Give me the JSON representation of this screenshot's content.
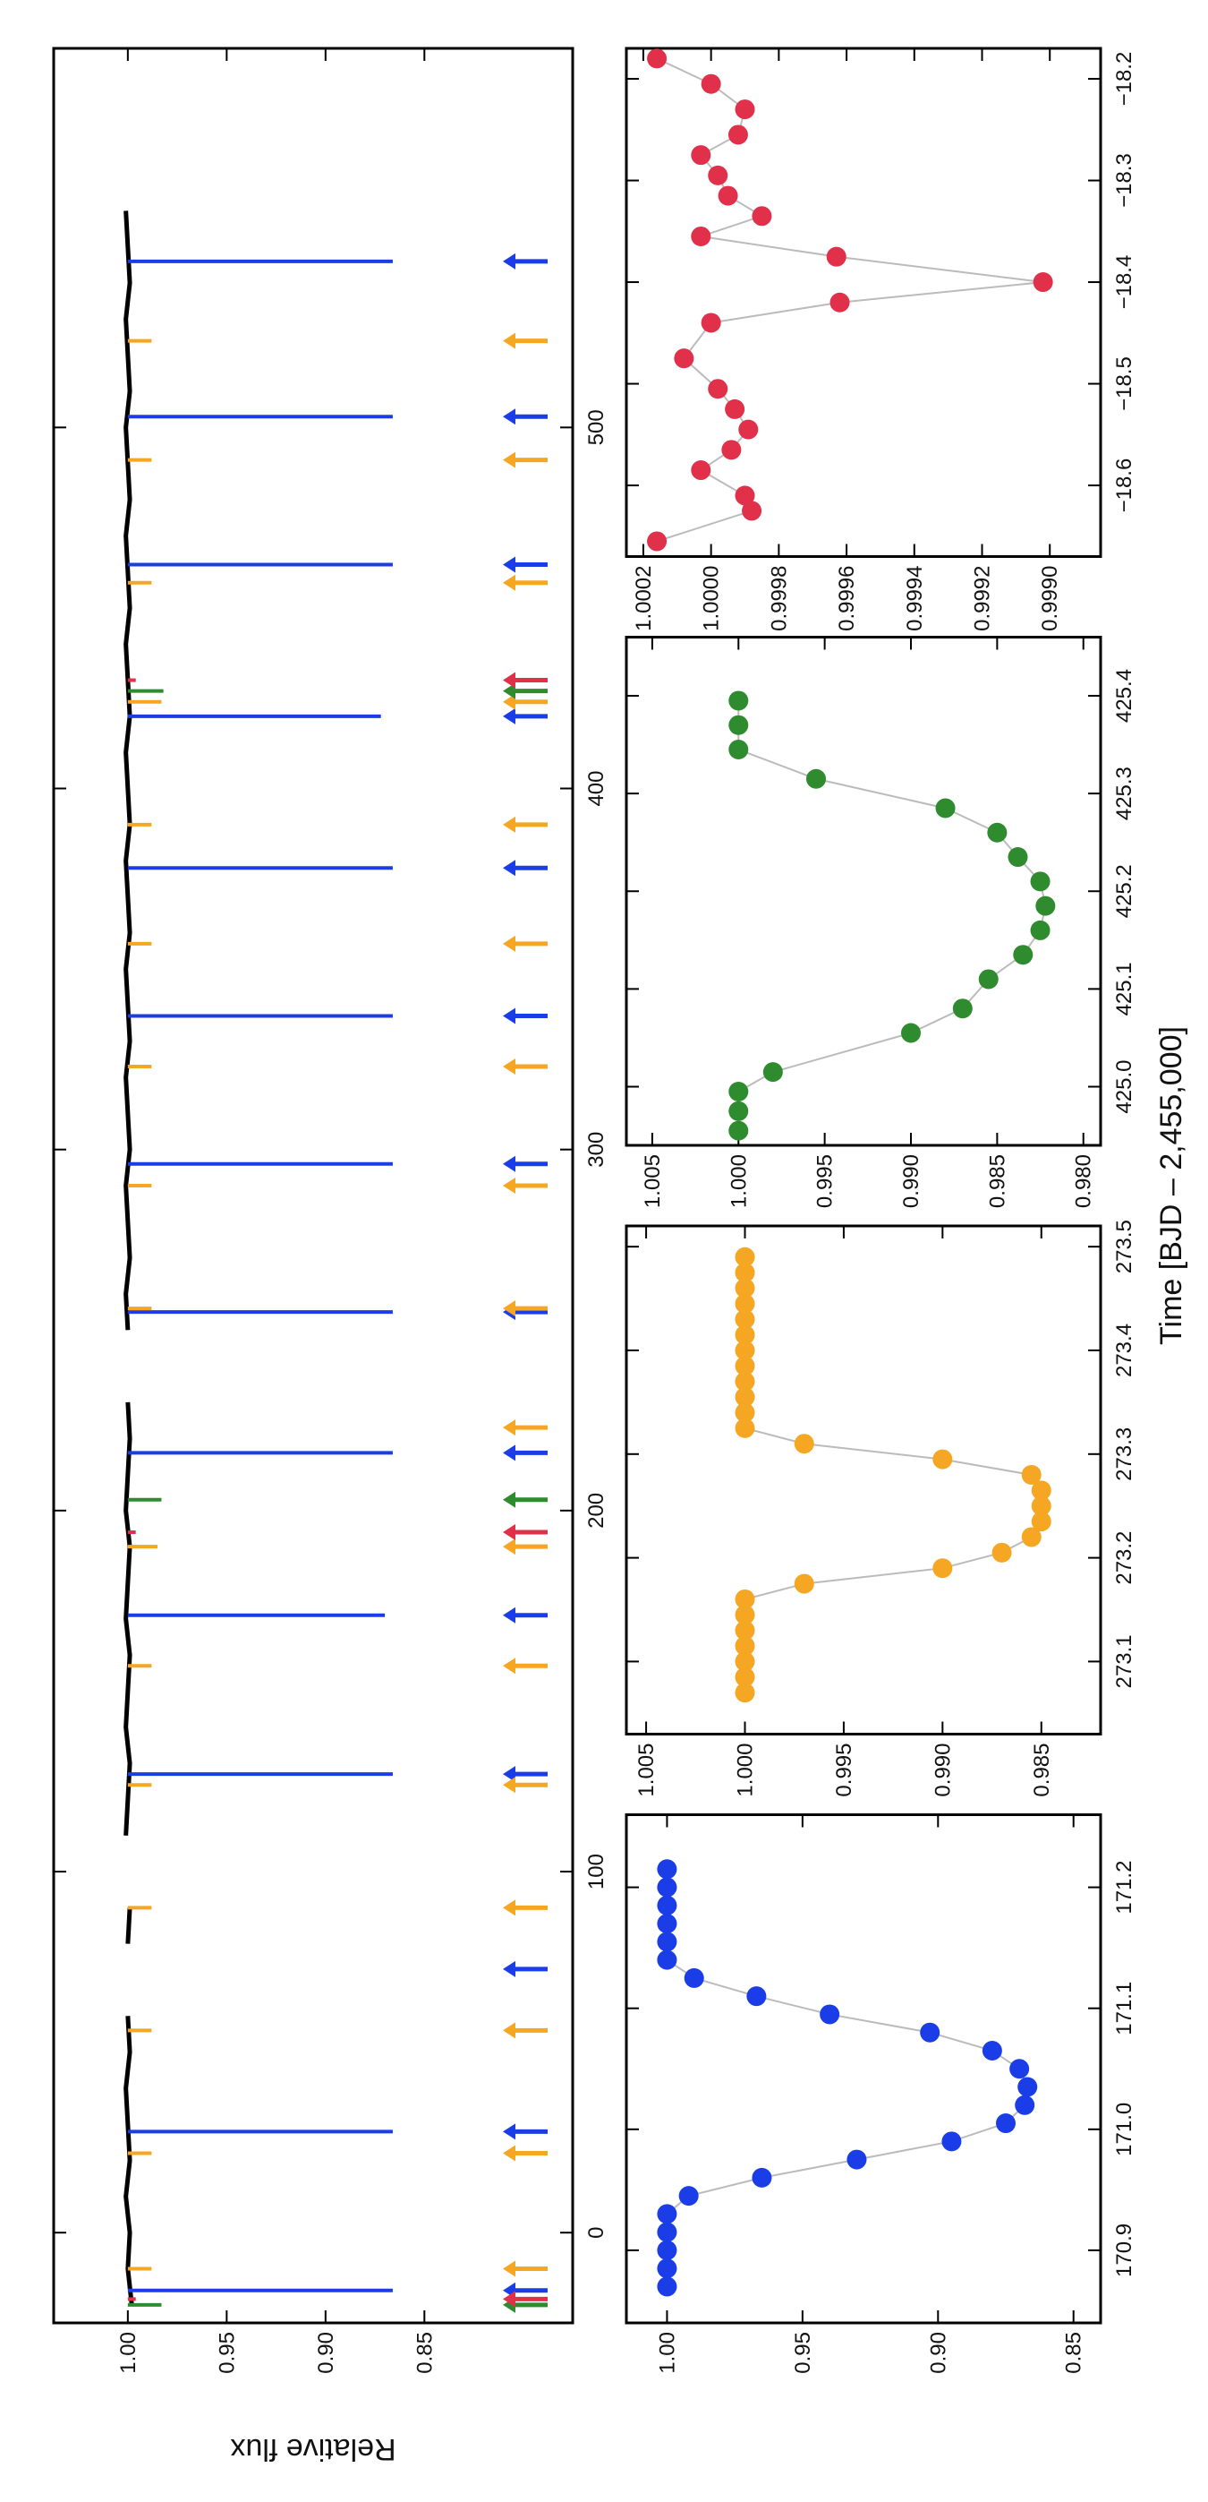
{
  "xlabel": "Time [BJD – 2,455,000]",
  "chart_data": [
    {
      "type": "line",
      "ylabel": "Relative flux",
      "xlim": [
        -25,
        605
      ],
      "xticks": [
        0,
        100,
        200,
        300,
        400,
        500
      ],
      "ylim": [
        0.775,
        1.0375
      ],
      "yticks": [
        {
          "value": 1,
          "label": "1.00"
        },
        0.95,
        {
          "value": 0.9,
          "label": "0.90"
        },
        0.85
      ],
      "x": [
        -20,
        -10,
        0,
        10,
        20,
        30,
        40,
        50,
        60,
        70,
        80,
        90,
        100,
        110,
        120,
        130,
        140,
        150,
        160,
        170,
        180,
        190,
        200,
        210,
        220,
        230,
        240,
        250,
        260,
        270,
        280,
        290,
        300,
        310,
        320,
        330,
        340,
        350,
        360,
        370,
        380,
        390,
        400,
        410,
        420,
        430,
        440,
        450,
        460,
        470,
        480,
        490,
        500,
        510,
        520,
        530,
        540,
        550,
        560
      ],
      "series": [
        {
          "color": "#000000",
          "values": [
            0.998,
            1.0,
            0.999,
            1.001,
            0.999,
            1.0,
            1.001,
            0.999,
            1.0,
            null,
            1.0,
            0.999,
            null,
            1.001,
            1.0,
            0.999,
            1.001,
            1.0,
            0.999,
            1.001,
            1.0,
            0.999,
            1.001,
            1.0,
            0.999,
            1.0,
            null,
            1.0,
            1.001,
            0.999,
            1.0,
            1.001,
            0.999,
            1.0,
            1.001,
            0.999,
            1.0,
            1.001,
            0.999,
            1.0,
            1.001,
            0.999,
            1.0,
            1.001,
            0.999,
            1.0,
            1.001,
            0.999,
            1.0,
            1.001,
            0.999,
            1.0,
            1.001,
            0.999,
            1.0,
            1.001,
            0.999,
            1.0,
            1.001
          ]
        }
      ],
      "transits": [
        {
          "color": "#1a3de8",
          "times": [
            -16,
            28,
            73,
            127,
            171,
            216,
            255,
            296,
            337,
            378,
            420,
            462,
            503,
            546
          ],
          "depths": [
            0.866,
            0.866,
            null,
            0.866,
            0.87,
            0.866,
            0.866,
            0.866,
            0.866,
            0.866,
            0.872,
            0.866,
            0.866,
            0.866
          ]
        },
        {
          "color": "#f5a623",
          "times": [
            -10,
            22,
            56,
            90,
            124,
            157,
            190,
            223,
            256,
            290,
            323,
            357,
            390,
            424,
            457,
            491,
            524
          ],
          "depths": [
            0.988,
            0.988,
            0.988,
            0.988,
            0.988,
            0.988,
            0.985,
            null,
            0.988,
            0.988,
            0.988,
            0.988,
            0.988,
            0.983,
            0.988,
            0.988,
            0.988
          ]
        },
        {
          "color": "#2e8b2e",
          "times": [
            -20,
            203,
            427
          ],
          "depths": [
            0.983,
            0.983,
            0.982
          ]
        },
        {
          "color": "#e0304a",
          "times": [
            -18.4,
            194,
            430
          ],
          "depths": [
            0.996,
            0.996,
            0.996
          ]
        }
      ]
    },
    {
      "type": "scatter",
      "color": "#1a3de8",
      "xlim": [
        170.84,
        171.26
      ],
      "xticks": [
        170.9,
        {
          "value": 171,
          "label": "171.0"
        },
        171.1,
        171.2
      ],
      "ylim": [
        0.84,
        1.015
      ],
      "yticks": [
        {
          "value": 1,
          "label": "1.00"
        },
        0.95,
        {
          "value": 0.9,
          "label": "0.90"
        },
        0.85
      ],
      "x": [
        170.87,
        170.885,
        170.9,
        170.915,
        170.93,
        170.945,
        170.96,
        170.975,
        170.99,
        171.005,
        171.02,
        171.035,
        171.05,
        171.065,
        171.08,
        171.095,
        171.11,
        171.125,
        171.14,
        171.155,
        171.17,
        171.185,
        171.2,
        171.215
      ],
      "values": [
        1.0,
        1.0,
        1.0,
        1.0,
        1.0,
        0.992,
        0.965,
        0.93,
        0.895,
        0.875,
        0.868,
        0.867,
        0.87,
        0.88,
        0.903,
        0.94,
        0.967,
        0.99,
        1.0,
        1.0,
        1.0,
        1.0,
        1.0,
        1.0
      ]
    },
    {
      "type": "scatter",
      "color": "#f5a623",
      "xlim": [
        273.03,
        273.52
      ],
      "xticks": [
        273.1,
        273.2,
        273.3,
        273.4,
        273.5
      ],
      "ylim": [
        0.982,
        1.006
      ],
      "yticks": [
        1.005,
        {
          "value": 1,
          "label": "1.000"
        },
        0.995,
        {
          "value": 0.99,
          "label": "0.990"
        },
        0.985
      ],
      "x": [
        273.07,
        273.085,
        273.1,
        273.115,
        273.13,
        273.145,
        273.16,
        273.175,
        273.19,
        273.205,
        273.22,
        273.235,
        273.25,
        273.265,
        273.28,
        273.295,
        273.31,
        273.325,
        273.34,
        273.355,
        273.37,
        273.385,
        273.4,
        273.415,
        273.43,
        273.445,
        273.46,
        273.475,
        273.49
      ],
      "values": [
        1.0,
        1.0,
        1.0,
        1.0,
        1.0,
        1.0,
        1.0,
        0.997,
        0.99,
        0.987,
        0.9855,
        0.985,
        0.985,
        0.985,
        0.9855,
        0.99,
        0.997,
        1.0,
        1.0,
        1.0,
        1.0,
        1.0,
        1.0,
        1.0,
        1.0,
        1.0,
        1.0,
        1.0,
        1.0
      ]
    },
    {
      "type": "scatter",
      "color": "#2e8b2e",
      "xlim": [
        424.94,
        425.46
      ],
      "xticks": [
        {
          "value": 425,
          "label": "425.0"
        },
        425.1,
        425.2,
        425.3,
        425.4
      ],
      "ylim": [
        0.979,
        1.0065
      ],
      "yticks": [
        1.005,
        {
          "value": 1,
          "label": "1.000"
        },
        0.995,
        {
          "value": 0.99,
          "label": "0.990"
        },
        0.985,
        {
          "value": 0.98,
          "label": "0.980"
        }
      ],
      "x": [
        424.955,
        424.975,
        424.995,
        425.015,
        425.055,
        425.08,
        425.11,
        425.135,
        425.16,
        425.185,
        425.21,
        425.235,
        425.26,
        425.285,
        425.315,
        425.345,
        425.37,
        425.395
      ],
      "values": [
        1.0,
        1.0,
        1.0,
        0.998,
        0.99,
        0.987,
        0.9855,
        0.9835,
        0.9825,
        0.9822,
        0.9825,
        0.9838,
        0.985,
        0.988,
        0.9955,
        1.0,
        1.0,
        1.0
      ]
    },
    {
      "type": "scatter",
      "color": "#e0304a",
      "xlim": [
        -18.67,
        -18.17
      ],
      "xticks": [
        {
          "value": -18.6,
          "label": "−18.6"
        },
        {
          "value": -18.5,
          "label": "−18.5"
        },
        {
          "value": -18.4,
          "label": "−18.4"
        },
        {
          "value": -18.3,
          "label": "−18.3"
        },
        {
          "value": -18.2,
          "label": "−18.2"
        }
      ],
      "ylim": [
        0.99885,
        1.00025
      ],
      "yticks": [
        1.0002,
        {
          "value": 1,
          "label": "1.0000"
        },
        0.9998,
        0.9996,
        0.9994,
        0.9992,
        {
          "value": 0.999,
          "label": "0.9990"
        }
      ],
      "x": [
        -18.655,
        -18.625,
        -18.61,
        -18.585,
        -18.565,
        -18.545,
        -18.525,
        -18.505,
        -18.475,
        -18.44,
        -18.42,
        -18.4,
        -18.375,
        -18.355,
        -18.335,
        -18.315,
        -18.295,
        -18.275,
        -18.255,
        -18.23,
        -18.205,
        -18.18
      ],
      "values": [
        1.00016,
        0.99988,
        0.9999,
        1.00003,
        0.99994,
        0.99989,
        0.99993,
        0.99998,
        1.00008,
        1.0,
        0.99962,
        0.99902,
        0.99963,
        1.00003,
        0.99985,
        0.99995,
        0.99998,
        1.00003,
        0.99992,
        0.9999,
        1.0,
        1.00016
      ]
    }
  ]
}
